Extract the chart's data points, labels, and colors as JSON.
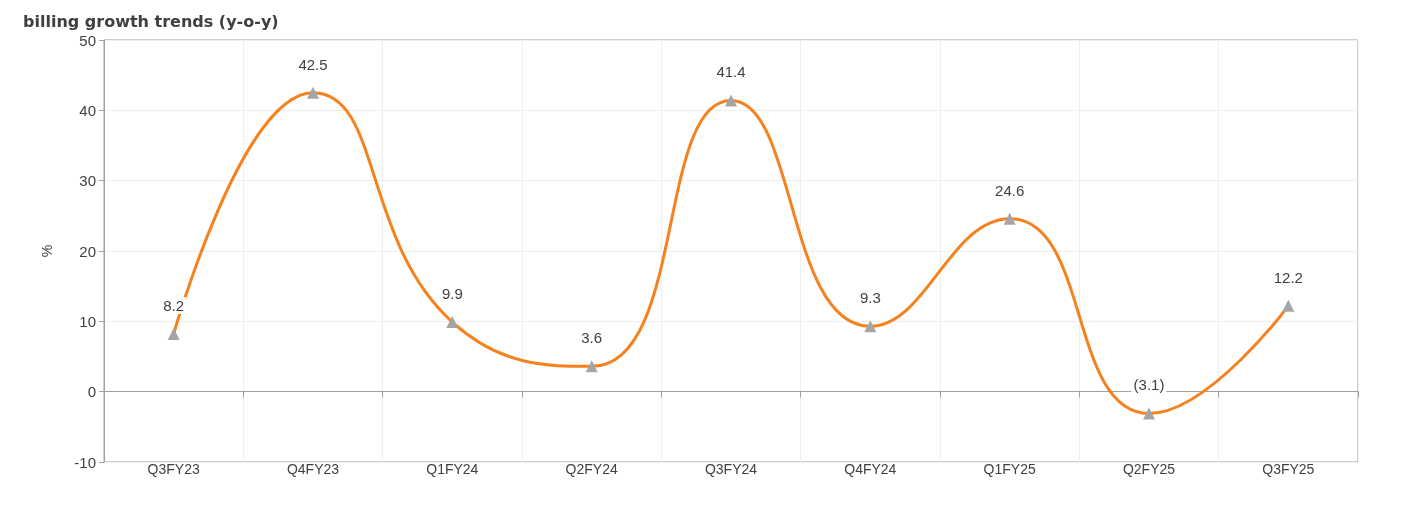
{
  "chart_data": {
    "type": "line",
    "title": "billing growth trends (y-o-y)",
    "ylabel": "%",
    "categories": [
      "Q3FY23",
      "Q4FY23",
      "Q1FY24",
      "Q2FY24",
      "Q3FY24",
      "Q4FY24",
      "Q1FY25",
      "Q2FY25",
      "Q3FY25"
    ],
    "series": [
      {
        "color": "#f5821f",
        "colors": [
          "#a5a5a5",
          "#a5a5a5",
          "#a5a5a5",
          "#a5a5a5",
          "#a5a5a5",
          "#a5a5a5",
          "#a5a5a5",
          "#a5a5a5",
          "#a5a5a5"
        ],
        "values": [
          8.2,
          42.5,
          9.9,
          3.6,
          41.4,
          9.3,
          24.6,
          -3.1,
          12.2
        ],
        "value_labels": [
          "8.2",
          "42.5",
          "9.9",
          "3.6",
          "41.4",
          "9.3",
          "24.6",
          "(3.1)",
          "12.2"
        ]
      }
    ],
    "ylim": [
      -10,
      50
    ],
    "yticks": [
      -10,
      0,
      10,
      20,
      30,
      40,
      50
    ],
    "grid": true,
    "marker": "triangle",
    "line_style": "solid"
  }
}
